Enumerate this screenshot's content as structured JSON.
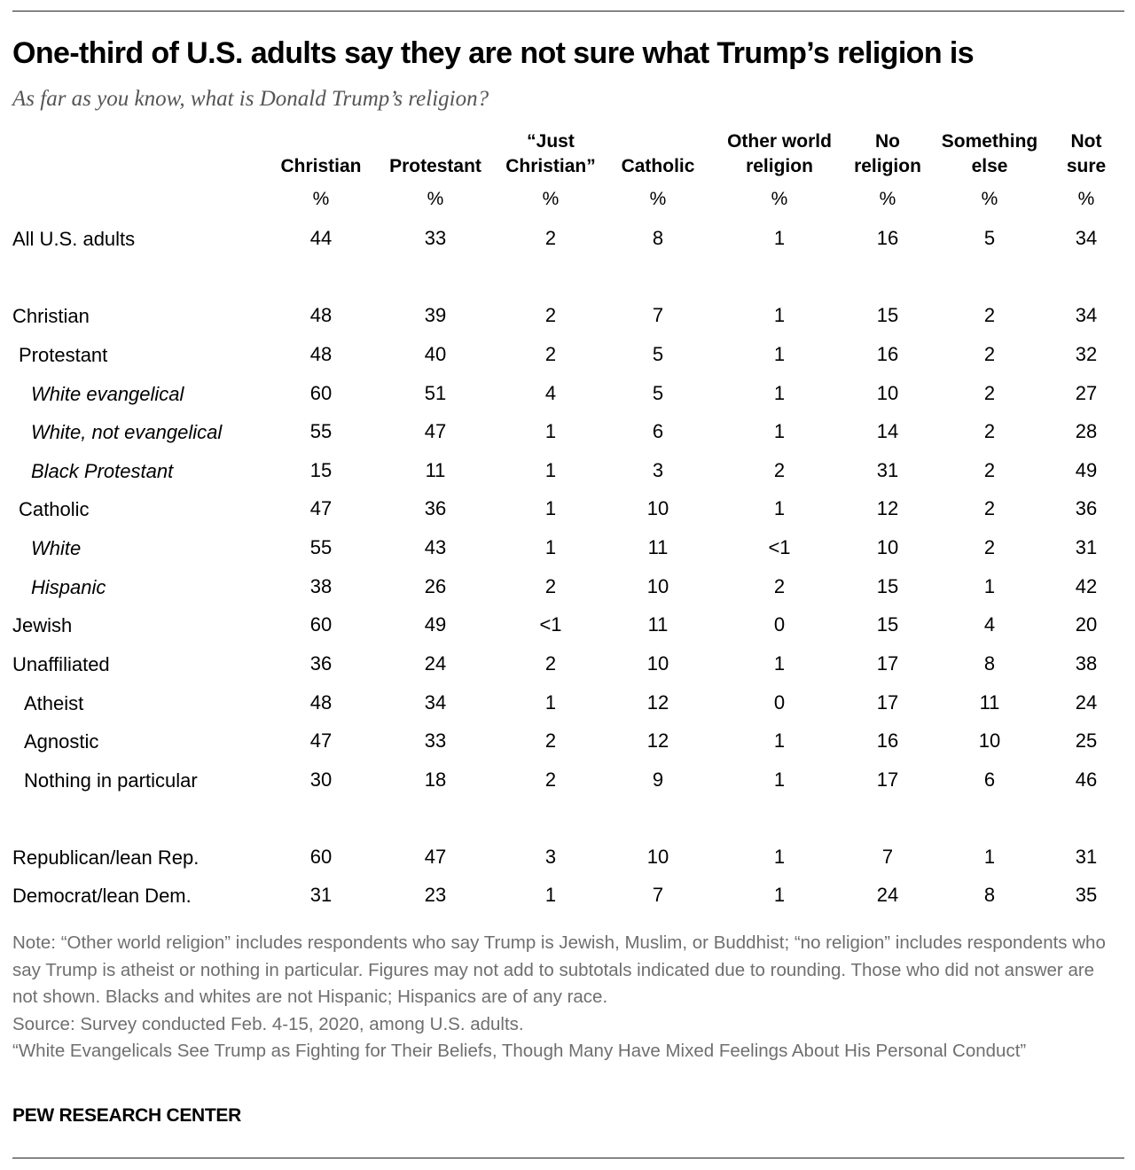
{
  "title": "One-third of U.S. adults say they are not sure what Trump’s religion is",
  "subtitle": "As far as you know, what is Donald Trump’s religion?",
  "chart_data": {
    "type": "table",
    "columns": [
      {
        "lines": [
          "",
          "Christian"
        ],
        "unit": "%"
      },
      {
        "lines": [
          "",
          "Protestant"
        ],
        "unit": "%"
      },
      {
        "lines": [
          "“Just",
          "Christian”"
        ],
        "unit": "%"
      },
      {
        "lines": [
          "",
          "Catholic"
        ],
        "unit": "%"
      },
      {
        "lines": [
          "Other world",
          "religion"
        ],
        "unit": "%"
      },
      {
        "lines": [
          "No",
          "religion"
        ],
        "unit": "%"
      },
      {
        "lines": [
          "Something",
          "else"
        ],
        "unit": "%"
      },
      {
        "lines": [
          "Not",
          "sure"
        ],
        "unit": "%"
      }
    ],
    "rows": [
      {
        "label": "All U.S. adults",
        "indent": 0,
        "italic": false,
        "values": [
          "44",
          "33",
          "2",
          "8",
          "1",
          "16",
          "5",
          "34"
        ]
      },
      {
        "label": "Christian",
        "indent": 0,
        "italic": false,
        "values": [
          "48",
          "39",
          "2",
          "7",
          "1",
          "15",
          "2",
          "34"
        ]
      },
      {
        "label": "Protestant",
        "indent": 1,
        "italic": false,
        "values": [
          "48",
          "40",
          "2",
          "5",
          "1",
          "16",
          "2",
          "32"
        ]
      },
      {
        "label": "White evangelical",
        "indent": 2,
        "italic": true,
        "values": [
          "60",
          "51",
          "4",
          "5",
          "1",
          "10",
          "2",
          "27"
        ]
      },
      {
        "label": "White, not evangelical",
        "indent": 2,
        "italic": true,
        "values": [
          "55",
          "47",
          "1",
          "6",
          "1",
          "14",
          "2",
          "28"
        ]
      },
      {
        "label": "Black Protestant",
        "indent": 2,
        "italic": true,
        "values": [
          "15",
          "11",
          "1",
          "3",
          "2",
          "31",
          "2",
          "49"
        ]
      },
      {
        "label": "Catholic",
        "indent": 1,
        "italic": false,
        "values": [
          "47",
          "36",
          "1",
          "10",
          "1",
          "12",
          "2",
          "36"
        ]
      },
      {
        "label": "White",
        "indent": 2,
        "italic": true,
        "values": [
          "55",
          "43",
          "1",
          "11",
          "<1",
          "10",
          "2",
          "31"
        ]
      },
      {
        "label": "Hispanic",
        "indent": 2,
        "italic": true,
        "values": [
          "38",
          "26",
          "2",
          "10",
          "2",
          "15",
          "1",
          "42"
        ]
      },
      {
        "label": "Jewish",
        "indent": 0,
        "italic": false,
        "values": [
          "60",
          "49",
          "<1",
          "11",
          "0",
          "15",
          "4",
          "20"
        ]
      },
      {
        "label": "Unaffiliated",
        "indent": 0,
        "italic": false,
        "values": [
          "36",
          "24",
          "2",
          "10",
          "1",
          "17",
          "8",
          "38"
        ]
      },
      {
        "label": "Atheist",
        "indent": 1,
        "italic": false,
        "values": [
          "48",
          "34",
          "1",
          "12",
          "0",
          "17",
          "11",
          "24"
        ]
      },
      {
        "label": "Agnostic",
        "indent": 1,
        "italic": false,
        "values": [
          "47",
          "33",
          "2",
          "12",
          "1",
          "16",
          "10",
          "25"
        ]
      },
      {
        "label": "Nothing in particular",
        "indent": 1,
        "italic": false,
        "values": [
          "30",
          "18",
          "2",
          "9",
          "1",
          "17",
          "6",
          "46"
        ]
      },
      {
        "label": "Republican/lean Rep.",
        "indent": 0,
        "italic": false,
        "values": [
          "60",
          "47",
          "3",
          "10",
          "1",
          "7",
          "1",
          "31"
        ]
      },
      {
        "label": "Democrat/lean Dem.",
        "indent": 0,
        "italic": false,
        "values": [
          "31",
          "23",
          "1",
          "7",
          "1",
          "24",
          "8",
          "35"
        ]
      }
    ]
  },
  "notes": [
    "Note: “Other world religion” includes respondents who say Trump is Jewish, Muslim, or Buddhist; “no religion” includes respondents who say Trump is atheist or nothing in particular. Figures may not add to subtotals indicated due to rounding. Those who did not answer are not shown. Blacks and whites are not Hispanic; Hispanics are of any race.",
    "Source: Survey conducted Feb. 4-15, 2020, among U.S. adults.",
    "“White Evangelicals See Trump as Fighting for Their Beliefs, Though Many Have Mixed Feelings About His Personal Conduct”"
  ],
  "brand": "PEW RESEARCH CENTER"
}
